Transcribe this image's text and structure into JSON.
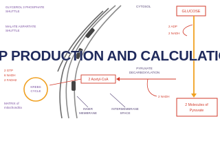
{
  "diagram": {
    "title": "ATP PRODUCTION AND CALCULATION",
    "glycerol_shuttle": [
      "GLYCEROL 3 PHOSPHATE",
      "SHUTTLE"
    ],
    "malate_shuttle": [
      "MALATE ASPARTATE",
      "SHUTTLE"
    ],
    "cytosol": "CYTOSOL",
    "glucose": "GLUCOSE",
    "glycolysis_outputs": [
      "2 ADP",
      "2 NADH"
    ],
    "krebs_outputs": [
      "2 GTP",
      "6 NADH",
      "2 FADH2"
    ],
    "krebs_cycle": [
      "KREBS",
      "CYCLE"
    ],
    "acetyl_coa": "2 Acetyl-CoA",
    "pyruvate_decarboxylation": [
      "PYRUVATE",
      "DECARBOXYLATION"
    ],
    "pyruvate": [
      "2 Molecules of",
      "Pyruvate"
    ],
    "decarboxylation_output": "2 NADH",
    "matrix": [
      "MATRIX of",
      "mitochondria"
    ],
    "inner_membrane": [
      "INNER",
      "MEMBRANE"
    ],
    "intermembrane_space": [
      "INTERMEMBRANE",
      "SPACE"
    ]
  }
}
